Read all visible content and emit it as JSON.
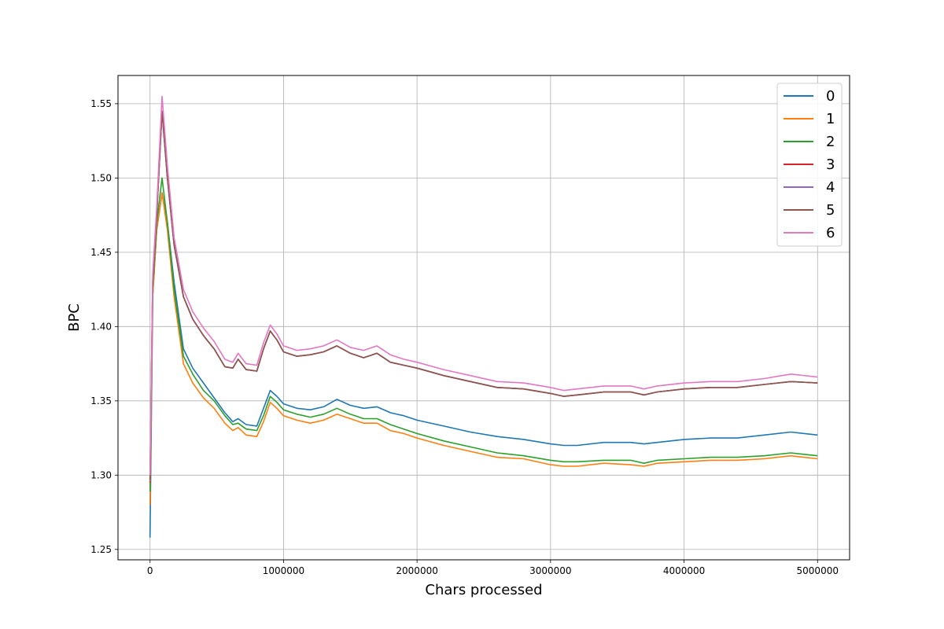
{
  "chart_data": {
    "type": "line",
    "xlabel": "Chars processed",
    "ylabel": "BPC",
    "xlim": [
      -240000,
      5240000
    ],
    "ylim": [
      1.243,
      1.569
    ],
    "xticks": [
      0,
      1000000,
      2000000,
      3000000,
      4000000,
      5000000
    ],
    "xtick_labels": [
      "0",
      "1000000",
      "2000000",
      "3000000",
      "4000000",
      "5000000"
    ],
    "yticks": [
      1.25,
      1.3,
      1.35,
      1.4,
      1.45,
      1.5,
      1.55
    ],
    "ytick_labels": [
      "1.25",
      "1.30",
      "1.35",
      "1.40",
      "1.45",
      "1.50",
      "1.55"
    ],
    "grid": true,
    "legend_position": "top-right",
    "series": [
      {
        "name": "0",
        "color": "#1f77b4",
        "x": [
          0,
          20000,
          50000,
          90000,
          130000,
          180000,
          250000,
          320000,
          400000,
          480000,
          560000,
          620000,
          660000,
          720000,
          800000,
          850000,
          900000,
          950000,
          1000000,
          1100000,
          1200000,
          1300000,
          1400000,
          1500000,
          1600000,
          1700000,
          1800000,
          1900000,
          2000000,
          2200000,
          2400000,
          2600000,
          2800000,
          3000000,
          3100000,
          3200000,
          3400000,
          3600000,
          3700000,
          3800000,
          4000000,
          4200000,
          4400000,
          4600000,
          4800000,
          5000000
        ],
        "values": [
          1.258,
          1.42,
          1.465,
          1.49,
          1.47,
          1.43,
          1.385,
          1.372,
          1.362,
          1.352,
          1.342,
          1.336,
          1.338,
          1.334,
          1.333,
          1.345,
          1.357,
          1.353,
          1.348,
          1.345,
          1.344,
          1.346,
          1.351,
          1.347,
          1.345,
          1.346,
          1.342,
          1.34,
          1.337,
          1.333,
          1.329,
          1.326,
          1.324,
          1.321,
          1.32,
          1.32,
          1.322,
          1.322,
          1.321,
          1.322,
          1.324,
          1.325,
          1.325,
          1.327,
          1.329,
          1.327
        ]
      },
      {
        "name": "1",
        "color": "#ff7f0e",
        "x": [
          0,
          20000,
          50000,
          90000,
          130000,
          180000,
          250000,
          320000,
          400000,
          480000,
          560000,
          620000,
          660000,
          720000,
          800000,
          850000,
          900000,
          950000,
          1000000,
          1100000,
          1200000,
          1300000,
          1400000,
          1500000,
          1600000,
          1700000,
          1800000,
          1900000,
          2000000,
          2200000,
          2400000,
          2600000,
          2800000,
          3000000,
          3100000,
          3200000,
          3400000,
          3600000,
          3700000,
          3800000,
          4000000,
          4200000,
          4400000,
          4600000,
          4800000,
          5000000
        ],
        "values": [
          1.28,
          1.42,
          1.465,
          1.49,
          1.465,
          1.42,
          1.375,
          1.362,
          1.352,
          1.345,
          1.335,
          1.33,
          1.332,
          1.327,
          1.326,
          1.336,
          1.349,
          1.345,
          1.34,
          1.337,
          1.335,
          1.337,
          1.341,
          1.338,
          1.335,
          1.335,
          1.33,
          1.328,
          1.325,
          1.32,
          1.316,
          1.312,
          1.311,
          1.307,
          1.306,
          1.306,
          1.308,
          1.307,
          1.306,
          1.308,
          1.309,
          1.31,
          1.31,
          1.311,
          1.313,
          1.311
        ]
      },
      {
        "name": "2",
        "color": "#2ca02c",
        "x": [
          0,
          20000,
          50000,
          90000,
          130000,
          180000,
          250000,
          320000,
          400000,
          480000,
          560000,
          620000,
          660000,
          720000,
          800000,
          850000,
          900000,
          950000,
          1000000,
          1100000,
          1200000,
          1300000,
          1400000,
          1500000,
          1600000,
          1700000,
          1800000,
          1900000,
          2000000,
          2200000,
          2400000,
          2600000,
          2800000,
          3000000,
          3100000,
          3200000,
          3400000,
          3600000,
          3700000,
          3800000,
          4000000,
          4200000,
          4400000,
          4600000,
          4800000,
          5000000
        ],
        "values": [
          1.289,
          1.425,
          1.47,
          1.5,
          1.47,
          1.425,
          1.38,
          1.368,
          1.357,
          1.35,
          1.34,
          1.334,
          1.335,
          1.331,
          1.33,
          1.34,
          1.353,
          1.349,
          1.344,
          1.341,
          1.339,
          1.341,
          1.345,
          1.341,
          1.338,
          1.338,
          1.334,
          1.331,
          1.328,
          1.323,
          1.319,
          1.315,
          1.313,
          1.31,
          1.309,
          1.309,
          1.31,
          1.31,
          1.308,
          1.31,
          1.311,
          1.312,
          1.312,
          1.313,
          1.315,
          1.313
        ]
      },
      {
        "name": "3",
        "color": "#d62728",
        "x": [
          0,
          20000,
          50000,
          90000,
          130000,
          180000,
          250000,
          320000,
          400000,
          480000,
          560000,
          620000,
          660000,
          720000,
          800000,
          850000,
          900000,
          950000,
          1000000,
          1100000,
          1200000,
          1300000,
          1400000,
          1500000,
          1600000,
          1700000,
          1800000,
          1900000,
          2000000,
          2200000,
          2400000,
          2600000,
          2800000,
          3000000,
          3100000,
          3200000,
          3400000,
          3600000,
          3700000,
          3800000,
          4000000,
          4200000,
          4400000,
          4600000,
          4800000,
          5000000
        ],
        "values": [
          1.295,
          1.43,
          1.475,
          1.545,
          1.5,
          1.455,
          1.42,
          1.405,
          1.394,
          1.385,
          1.373,
          1.372,
          1.378,
          1.371,
          1.37,
          1.385,
          1.397,
          1.391,
          1.383,
          1.38,
          1.381,
          1.383,
          1.387,
          1.382,
          1.379,
          1.382,
          1.376,
          1.374,
          1.372,
          1.367,
          1.363,
          1.359,
          1.358,
          1.355,
          1.353,
          1.354,
          1.356,
          1.356,
          1.354,
          1.356,
          1.358,
          1.359,
          1.359,
          1.361,
          1.363,
          1.362
        ]
      },
      {
        "name": "4",
        "color": "#9467bd",
        "x": [
          0,
          20000,
          50000,
          90000,
          130000,
          180000,
          250000,
          320000,
          400000,
          480000,
          560000,
          620000,
          660000,
          720000,
          800000,
          850000,
          900000,
          950000,
          1000000,
          1100000,
          1200000,
          1300000,
          1400000,
          1500000,
          1600000,
          1700000,
          1800000,
          1900000,
          2000000,
          2200000,
          2400000,
          2600000,
          2800000,
          3000000,
          3100000,
          3200000,
          3400000,
          3600000,
          3700000,
          3800000,
          4000000,
          4200000,
          4400000,
          4600000,
          4800000,
          5000000
        ],
        "values": [
          1.296,
          1.43,
          1.475,
          1.545,
          1.5,
          1.455,
          1.42,
          1.405,
          1.394,
          1.385,
          1.373,
          1.372,
          1.378,
          1.371,
          1.37,
          1.385,
          1.397,
          1.391,
          1.383,
          1.38,
          1.381,
          1.383,
          1.387,
          1.382,
          1.379,
          1.382,
          1.376,
          1.374,
          1.372,
          1.367,
          1.363,
          1.359,
          1.358,
          1.355,
          1.353,
          1.354,
          1.356,
          1.356,
          1.354,
          1.356,
          1.358,
          1.359,
          1.359,
          1.361,
          1.363,
          1.362
        ]
      },
      {
        "name": "5",
        "color": "#8c564b",
        "x": [
          0,
          20000,
          50000,
          90000,
          130000,
          180000,
          250000,
          320000,
          400000,
          480000,
          560000,
          620000,
          660000,
          720000,
          800000,
          850000,
          900000,
          950000,
          1000000,
          1100000,
          1200000,
          1300000,
          1400000,
          1500000,
          1600000,
          1700000,
          1800000,
          1900000,
          2000000,
          2200000,
          2400000,
          2600000,
          2800000,
          3000000,
          3100000,
          3200000,
          3400000,
          3600000,
          3700000,
          3800000,
          4000000,
          4200000,
          4400000,
          4600000,
          4800000,
          5000000
        ],
        "values": [
          1.297,
          1.43,
          1.475,
          1.545,
          1.5,
          1.455,
          1.42,
          1.405,
          1.394,
          1.385,
          1.373,
          1.372,
          1.378,
          1.371,
          1.37,
          1.385,
          1.397,
          1.391,
          1.383,
          1.38,
          1.381,
          1.383,
          1.387,
          1.382,
          1.379,
          1.382,
          1.376,
          1.374,
          1.372,
          1.367,
          1.363,
          1.359,
          1.358,
          1.355,
          1.353,
          1.354,
          1.356,
          1.356,
          1.354,
          1.356,
          1.358,
          1.359,
          1.359,
          1.361,
          1.363,
          1.362
        ]
      },
      {
        "name": "6",
        "color": "#e377c2",
        "x": [
          0,
          20000,
          50000,
          90000,
          130000,
          180000,
          250000,
          320000,
          400000,
          480000,
          560000,
          620000,
          660000,
          720000,
          800000,
          850000,
          900000,
          950000,
          1000000,
          1100000,
          1200000,
          1300000,
          1400000,
          1500000,
          1600000,
          1700000,
          1800000,
          1900000,
          2000000,
          2200000,
          2400000,
          2600000,
          2800000,
          3000000,
          3100000,
          3200000,
          3400000,
          3600000,
          3700000,
          3800000,
          4000000,
          4200000,
          4400000,
          4600000,
          4800000,
          5000000
        ],
        "values": [
          1.3,
          1.435,
          1.48,
          1.555,
          1.508,
          1.46,
          1.425,
          1.41,
          1.399,
          1.39,
          1.378,
          1.376,
          1.382,
          1.375,
          1.374,
          1.389,
          1.401,
          1.395,
          1.387,
          1.384,
          1.385,
          1.387,
          1.391,
          1.386,
          1.384,
          1.387,
          1.381,
          1.378,
          1.376,
          1.371,
          1.367,
          1.363,
          1.362,
          1.359,
          1.357,
          1.358,
          1.36,
          1.36,
          1.358,
          1.36,
          1.362,
          1.363,
          1.363,
          1.365,
          1.368,
          1.366
        ]
      }
    ]
  }
}
